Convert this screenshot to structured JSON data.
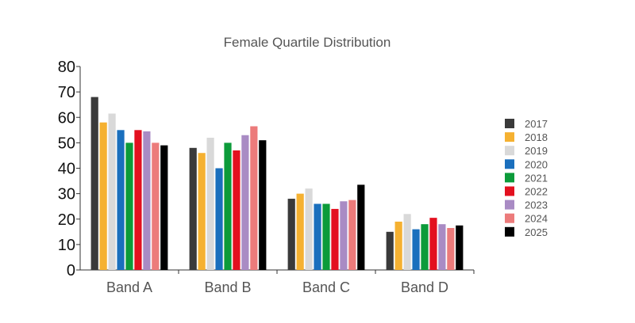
{
  "chart_data": {
    "type": "bar",
    "title": "Female Quartile Distribution",
    "xlabel": "",
    "ylabel": "",
    "ylim": [
      0,
      80
    ],
    "yticks": [
      0,
      10,
      20,
      30,
      40,
      50,
      60,
      70,
      80
    ],
    "categories": [
      "Band A",
      "Band B",
      "Band C",
      "Band D"
    ],
    "grid": false,
    "legend_position": "right",
    "series": [
      {
        "name": "2017",
        "color": "#3a3a3a",
        "values": [
          68,
          48,
          28,
          15
        ]
      },
      {
        "name": "2018",
        "color": "#f5b131",
        "values": [
          58,
          46,
          30,
          19
        ]
      },
      {
        "name": "2019",
        "color": "#d9d9d9",
        "values": [
          61.5,
          52,
          32,
          22
        ]
      },
      {
        "name": "2020",
        "color": "#1a6fbd",
        "values": [
          55,
          40,
          26,
          16
        ]
      },
      {
        "name": "2021",
        "color": "#0c9b3a",
        "values": [
          50,
          50,
          26,
          18
        ]
      },
      {
        "name": "2022",
        "color": "#e3101f",
        "values": [
          55,
          47,
          24,
          20.5
        ]
      },
      {
        "name": "2023",
        "color": "#a98bc4",
        "values": [
          54.5,
          53,
          27,
          18
        ]
      },
      {
        "name": "2024",
        "color": "#ec7b7b",
        "values": [
          50,
          56.5,
          27.5,
          16.5
        ]
      },
      {
        "name": "2025",
        "color": "#000000",
        "values": [
          49,
          51,
          33.5,
          17.5
        ]
      }
    ]
  }
}
